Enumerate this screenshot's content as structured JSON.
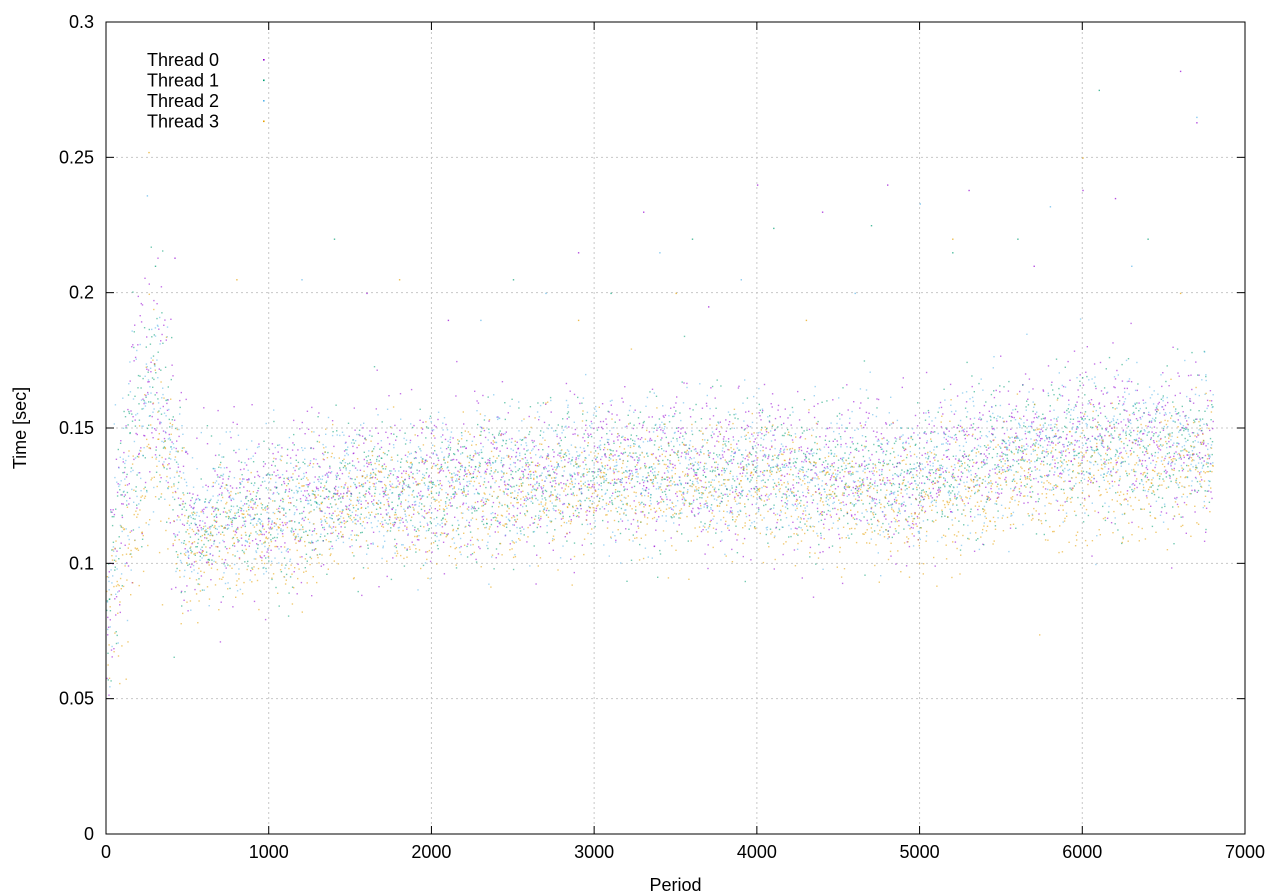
{
  "chart_data": {
    "type": "scatter",
    "title": "",
    "xlabel": "Period",
    "ylabel": "Time [sec]",
    "xlim": [
      0,
      7000
    ],
    "ylim": [
      0,
      0.3
    ],
    "x_ticks": [
      0,
      1000,
      2000,
      3000,
      4000,
      5000,
      6000,
      7000
    ],
    "x_tick_labels": [
      "0",
      "1000",
      "2000",
      "3000",
      "4000",
      "5000",
      "6000",
      "7000"
    ],
    "y_ticks": [
      0,
      0.05,
      0.1,
      0.15,
      0.2,
      0.25,
      0.3
    ],
    "y_tick_labels": [
      "0",
      "0.05",
      "0.1",
      "0.15",
      "0.2",
      "0.25",
      "0.3"
    ],
    "grid": true,
    "legend_position": "top-left",
    "series": [
      {
        "name": "Thread 0",
        "color": "#9400d3",
        "trend": {
          "x": [
            0,
            100,
            200,
            300,
            400,
            500,
            700,
            1000,
            1500,
            2000,
            2500,
            3000,
            3500,
            4000,
            4500,
            5000,
            5500,
            6000,
            6500,
            6800
          ],
          "y": [
            0.08,
            0.13,
            0.16,
            0.17,
            0.14,
            0.115,
            0.12,
            0.12,
            0.128,
            0.13,
            0.132,
            0.134,
            0.135,
            0.135,
            0.134,
            0.132,
            0.142,
            0.145,
            0.145,
            0.145
          ]
        },
        "spread": 0.014,
        "outliers": [
          [
            420,
            0.213
          ],
          [
            1600,
            0.2
          ],
          [
            2100,
            0.19
          ],
          [
            2900,
            0.215
          ],
          [
            3300,
            0.23
          ],
          [
            3700,
            0.195
          ],
          [
            4000,
            0.24
          ],
          [
            4400,
            0.23
          ],
          [
            4800,
            0.24
          ],
          [
            5300,
            0.238
          ],
          [
            5700,
            0.21
          ],
          [
            6000,
            0.238
          ],
          [
            6200,
            0.235
          ],
          [
            6600,
            0.282
          ],
          [
            6700,
            0.263
          ]
        ]
      },
      {
        "name": "Thread 1",
        "color": "#009e73",
        "trend": {
          "x": [
            0,
            100,
            200,
            300,
            400,
            500,
            700,
            1000,
            1500,
            2000,
            2500,
            3000,
            3500,
            4000,
            4500,
            5000,
            5500,
            6000,
            6500,
            6800
          ],
          "y": [
            0.08,
            0.13,
            0.16,
            0.17,
            0.14,
            0.112,
            0.118,
            0.118,
            0.126,
            0.128,
            0.13,
            0.133,
            0.135,
            0.134,
            0.133,
            0.13,
            0.14,
            0.143,
            0.143,
            0.145
          ]
        },
        "spread": 0.013,
        "outliers": [
          [
            300,
            0.21
          ],
          [
            1400,
            0.22
          ],
          [
            2500,
            0.205
          ],
          [
            3100,
            0.2
          ],
          [
            3600,
            0.22
          ],
          [
            4100,
            0.224
          ],
          [
            4700,
            0.225
          ],
          [
            5200,
            0.215
          ],
          [
            5600,
            0.22
          ],
          [
            6100,
            0.275
          ],
          [
            6400,
            0.22
          ]
        ]
      },
      {
        "name": "Thread 2",
        "color": "#56b4e9",
        "trend": {
          "x": [
            0,
            100,
            200,
            300,
            400,
            500,
            700,
            1000,
            1500,
            2000,
            2500,
            3000,
            3500,
            4000,
            4500,
            5000,
            5500,
            6000,
            6500,
            6800
          ],
          "y": [
            0.075,
            0.125,
            0.15,
            0.165,
            0.14,
            0.114,
            0.12,
            0.12,
            0.127,
            0.129,
            0.131,
            0.134,
            0.134,
            0.134,
            0.133,
            0.131,
            0.141,
            0.144,
            0.144,
            0.145
          ]
        },
        "spread": 0.013,
        "outliers": [
          [
            250,
            0.236
          ],
          [
            1200,
            0.205
          ],
          [
            2300,
            0.19
          ],
          [
            2700,
            0.2
          ],
          [
            3400,
            0.215
          ],
          [
            3900,
            0.205
          ],
          [
            4600,
            0.2
          ],
          [
            5000,
            0.233
          ],
          [
            5800,
            0.232
          ],
          [
            6300,
            0.21
          ],
          [
            6700,
            0.265
          ]
        ]
      },
      {
        "name": "Thread 3",
        "color": "#e69f00",
        "trend": {
          "x": [
            0,
            100,
            200,
            300,
            400,
            500,
            700,
            1000,
            1500,
            2000,
            2500,
            3000,
            3500,
            4000,
            4500,
            5000,
            5500,
            6000,
            6500,
            6800
          ],
          "y": [
            0.07,
            0.1,
            0.12,
            0.15,
            0.13,
            0.105,
            0.112,
            0.11,
            0.122,
            0.125,
            0.125,
            0.128,
            0.128,
            0.128,
            0.125,
            0.123,
            0.13,
            0.133,
            0.133,
            0.14
          ]
        },
        "spread": 0.012,
        "outliers": [
          [
            260,
            0.252
          ],
          [
            800,
            0.205
          ],
          [
            1800,
            0.205
          ],
          [
            2900,
            0.19
          ],
          [
            3500,
            0.2
          ],
          [
            4300,
            0.19
          ],
          [
            5200,
            0.22
          ],
          [
            6000,
            0.25
          ],
          [
            6600,
            0.2
          ]
        ]
      }
    ]
  }
}
